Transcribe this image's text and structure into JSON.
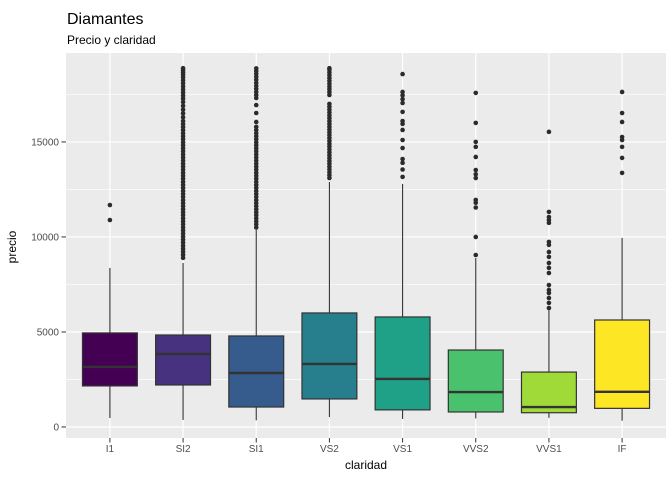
{
  "chart_data": {
    "type": "boxplot",
    "title": "Diamantes",
    "subtitle": "Precio y claridad",
    "xlabel": "claridad",
    "ylabel": "precio",
    "categories": [
      "I1",
      "SI2",
      "SI1",
      "VS2",
      "VS1",
      "VVS2",
      "VVS1",
      "IF"
    ],
    "yticks": [
      0,
      5000,
      10000,
      15000
    ],
    "ytick_labels": [
      "0",
      "5000",
      "10000",
      "15000"
    ],
    "yminor": [
      2500,
      7500,
      12500,
      17500
    ],
    "ylim": [
      -580,
      19680
    ],
    "grid": true,
    "legend": "none",
    "colors": {
      "panel_bg": "#EBEBEB",
      "grid": "#FFFFFF",
      "box_border": "#333333",
      "median": "#333333",
      "whisker": "#333333",
      "outlier": "#2B2B2B",
      "tick_text": "#4D4D4D",
      "title_text": "#000000"
    },
    "series": [
      {
        "category": "I1",
        "fill": "#440154",
        "low": 470,
        "q1": 2160,
        "median": 3160,
        "q3": 4950,
        "high": 8370,
        "outliers": [
          10890,
          11680
        ]
      },
      {
        "category": "SI2",
        "fill": "#46327E",
        "low": 370,
        "q1": 2210,
        "median": 3840,
        "q3": 4840,
        "high": 8630,
        "outliers": [
          8900,
          9060,
          9220,
          9380,
          9540,
          9700,
          9860,
          10020,
          10180,
          10340,
          10500,
          10660,
          10820,
          10980,
          11140,
          11300,
          11460,
          11620,
          11780,
          11940,
          12100,
          12260,
          12420,
          12580,
          12740,
          12900,
          13060,
          13220,
          13380,
          13540,
          13700,
          13860,
          14020,
          14180,
          14340,
          14500,
          14660,
          14820,
          14980,
          15140,
          15300,
          15460,
          15620,
          15780,
          15940,
          16100,
          16300,
          16500,
          16700,
          16900,
          17100,
          17280,
          17440,
          17600,
          17760,
          17920,
          18080,
          18240,
          18400,
          18540,
          18660,
          18780,
          18880
        ]
      },
      {
        "category": "SI1",
        "fill": "#365C8D",
        "low": 350,
        "q1": 1050,
        "median": 2840,
        "q3": 4790,
        "high": 10370,
        "outliers": [
          10500,
          10660,
          10820,
          10980,
          11140,
          11300,
          11460,
          11620,
          11780,
          11940,
          12100,
          12260,
          12420,
          12580,
          12740,
          12900,
          13060,
          13220,
          13380,
          13540,
          13700,
          13860,
          14020,
          14180,
          14340,
          14500,
          14660,
          14820,
          14980,
          15140,
          15300,
          15460,
          15620,
          15790,
          16050,
          16520,
          16940,
          17310,
          17470,
          17630,
          17790,
          17950,
          18110,
          18270,
          18430,
          18590,
          18730,
          18870
        ]
      },
      {
        "category": "VS2",
        "fill": "#277F8E",
        "low": 520,
        "q1": 1475,
        "median": 3320,
        "q3": 6000,
        "high": 12890,
        "outliers": [
          13100,
          13250,
          13400,
          13550,
          13700,
          13850,
          14000,
          14150,
          14300,
          14450,
          14600,
          14750,
          14900,
          15050,
          15200,
          15350,
          15500,
          15650,
          15800,
          15950,
          16100,
          16250,
          16400,
          16550,
          16700,
          16850,
          17000,
          17470,
          17620,
          17770,
          17920,
          18070,
          18220,
          18370,
          18520,
          18670,
          18810,
          18880
        ]
      },
      {
        "category": "VS1",
        "fill": "#1FA187",
        "low": 420,
        "q1": 900,
        "median": 2530,
        "q3": 5790,
        "high": 12790,
        "outliers": [
          13160,
          13550,
          13900,
          14100,
          14680,
          15100,
          15630,
          15950,
          16100,
          16580,
          17050,
          17250,
          17450,
          17630,
          18570
        ]
      },
      {
        "category": "VVS2",
        "fill": "#4AC16D",
        "low": 450,
        "q1": 790,
        "median": 1840,
        "q3": 4050,
        "high": 8890,
        "outliers": [
          9050,
          10000,
          11550,
          11800,
          11950,
          13100,
          13300,
          13520,
          14210,
          14740,
          15000,
          16000,
          17580
        ]
      },
      {
        "category": "VVS1",
        "fill": "#A0DA39",
        "low": 480,
        "q1": 750,
        "median": 1050,
        "q3": 2890,
        "high": 6150,
        "outliers": [
          6260,
          6530,
          6790,
          7050,
          7210,
          7470,
          8100,
          8370,
          8630,
          8950,
          9210,
          9580,
          9740,
          10740,
          10890,
          11050,
          11320,
          15530
        ]
      },
      {
        "category": "IF",
        "fill": "#FDE725",
        "low": 330,
        "q1": 980,
        "median": 1850,
        "q3": 5630,
        "high": 9950,
        "outliers": [
          13370,
          14160,
          14740,
          15100,
          15260,
          16050,
          16520,
          17630
        ]
      }
    ]
  }
}
